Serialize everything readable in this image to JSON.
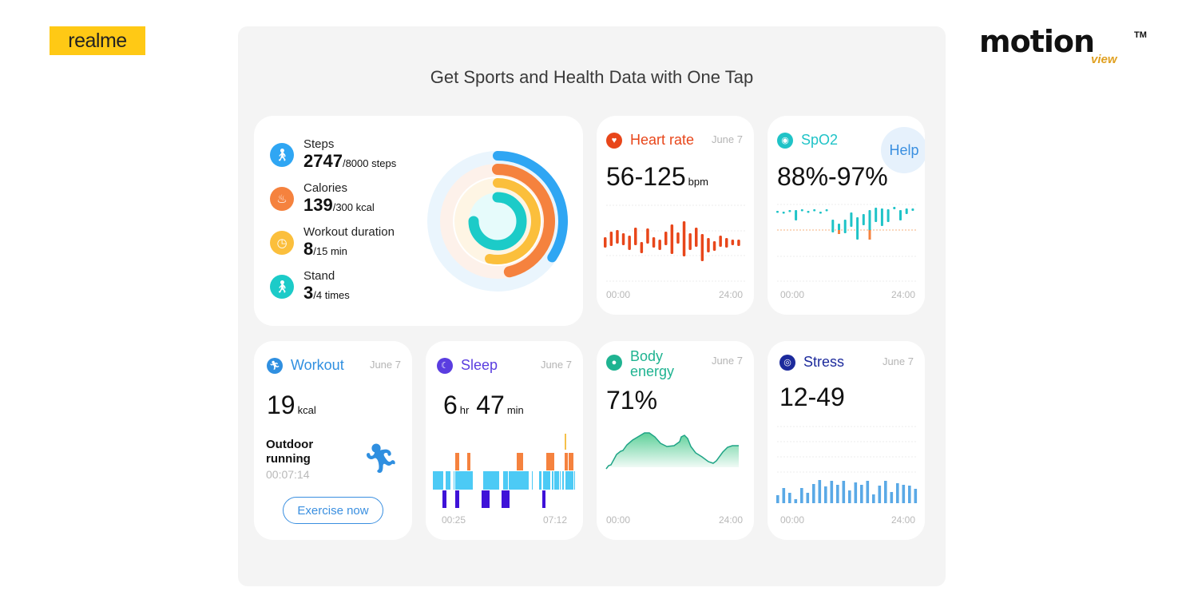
{
  "brand_left": "realme",
  "brand_right": {
    "name": "motion",
    "sub": "view",
    "tm": "TM"
  },
  "title": "Get Sports and Health Data with One Tap",
  "activity": {
    "items": [
      {
        "label": "Steps",
        "value": "2747",
        "goal": "/8000",
        "unit": "steps",
        "current": 2747,
        "target": 8000,
        "color": "#2fa6f3",
        "icon": "walking-icon"
      },
      {
        "label": "Calories",
        "value": "139",
        "goal": "/300",
        "unit": "kcal",
        "current": 139,
        "target": 300,
        "color": "#f5823e",
        "icon": "flame-icon"
      },
      {
        "label": "Workout duration",
        "value": "8",
        "goal": "/15",
        "unit": "min",
        "current": 8,
        "target": 15,
        "color": "#fbbf3c",
        "icon": "clock-icon"
      },
      {
        "label": "Stand",
        "value": "3",
        "goal": "/4",
        "unit": "times",
        "current": 3,
        "target": 4,
        "color": "#1ccbc8",
        "icon": "standing-icon"
      }
    ]
  },
  "heart": {
    "title": "Heart rate",
    "date": "June 7",
    "value": "56-125",
    "unit": "bpm",
    "x_start": "00:00",
    "x_end": "24:00",
    "color": "#e8461a"
  },
  "spo2": {
    "title": "SpO2",
    "value": "88%-97%",
    "help": "Help",
    "x_start": "00:00",
    "x_end": "24:00",
    "color": "#1fc3c7",
    "low_color": "#f5823e"
  },
  "workout": {
    "title": "Workout",
    "date": "June 7",
    "value": "19",
    "unit": "kcal",
    "activity": "Outdoor running",
    "duration": "00:07:14",
    "button": "Exercise now",
    "color": "#2f8fe0"
  },
  "sleep": {
    "title": "Sleep",
    "date": "June 7",
    "hours": "6",
    "hr_unit": "hr",
    "minutes": "47",
    "min_unit": "min",
    "x_start": "00:25",
    "x_end": "07:12",
    "color": "#5a3de0"
  },
  "body_energy": {
    "title": "Body energy",
    "date": "June 7",
    "value": "71%",
    "x_start": "00:00",
    "x_end": "24:00",
    "color": "#1fb391"
  },
  "stress": {
    "title": "Stress",
    "date": "June 7",
    "value": "12-49",
    "x_start": "00:00",
    "x_end": "24:00",
    "color": "#1c2a9c",
    "bar_color": "#5aa9e6"
  }
}
